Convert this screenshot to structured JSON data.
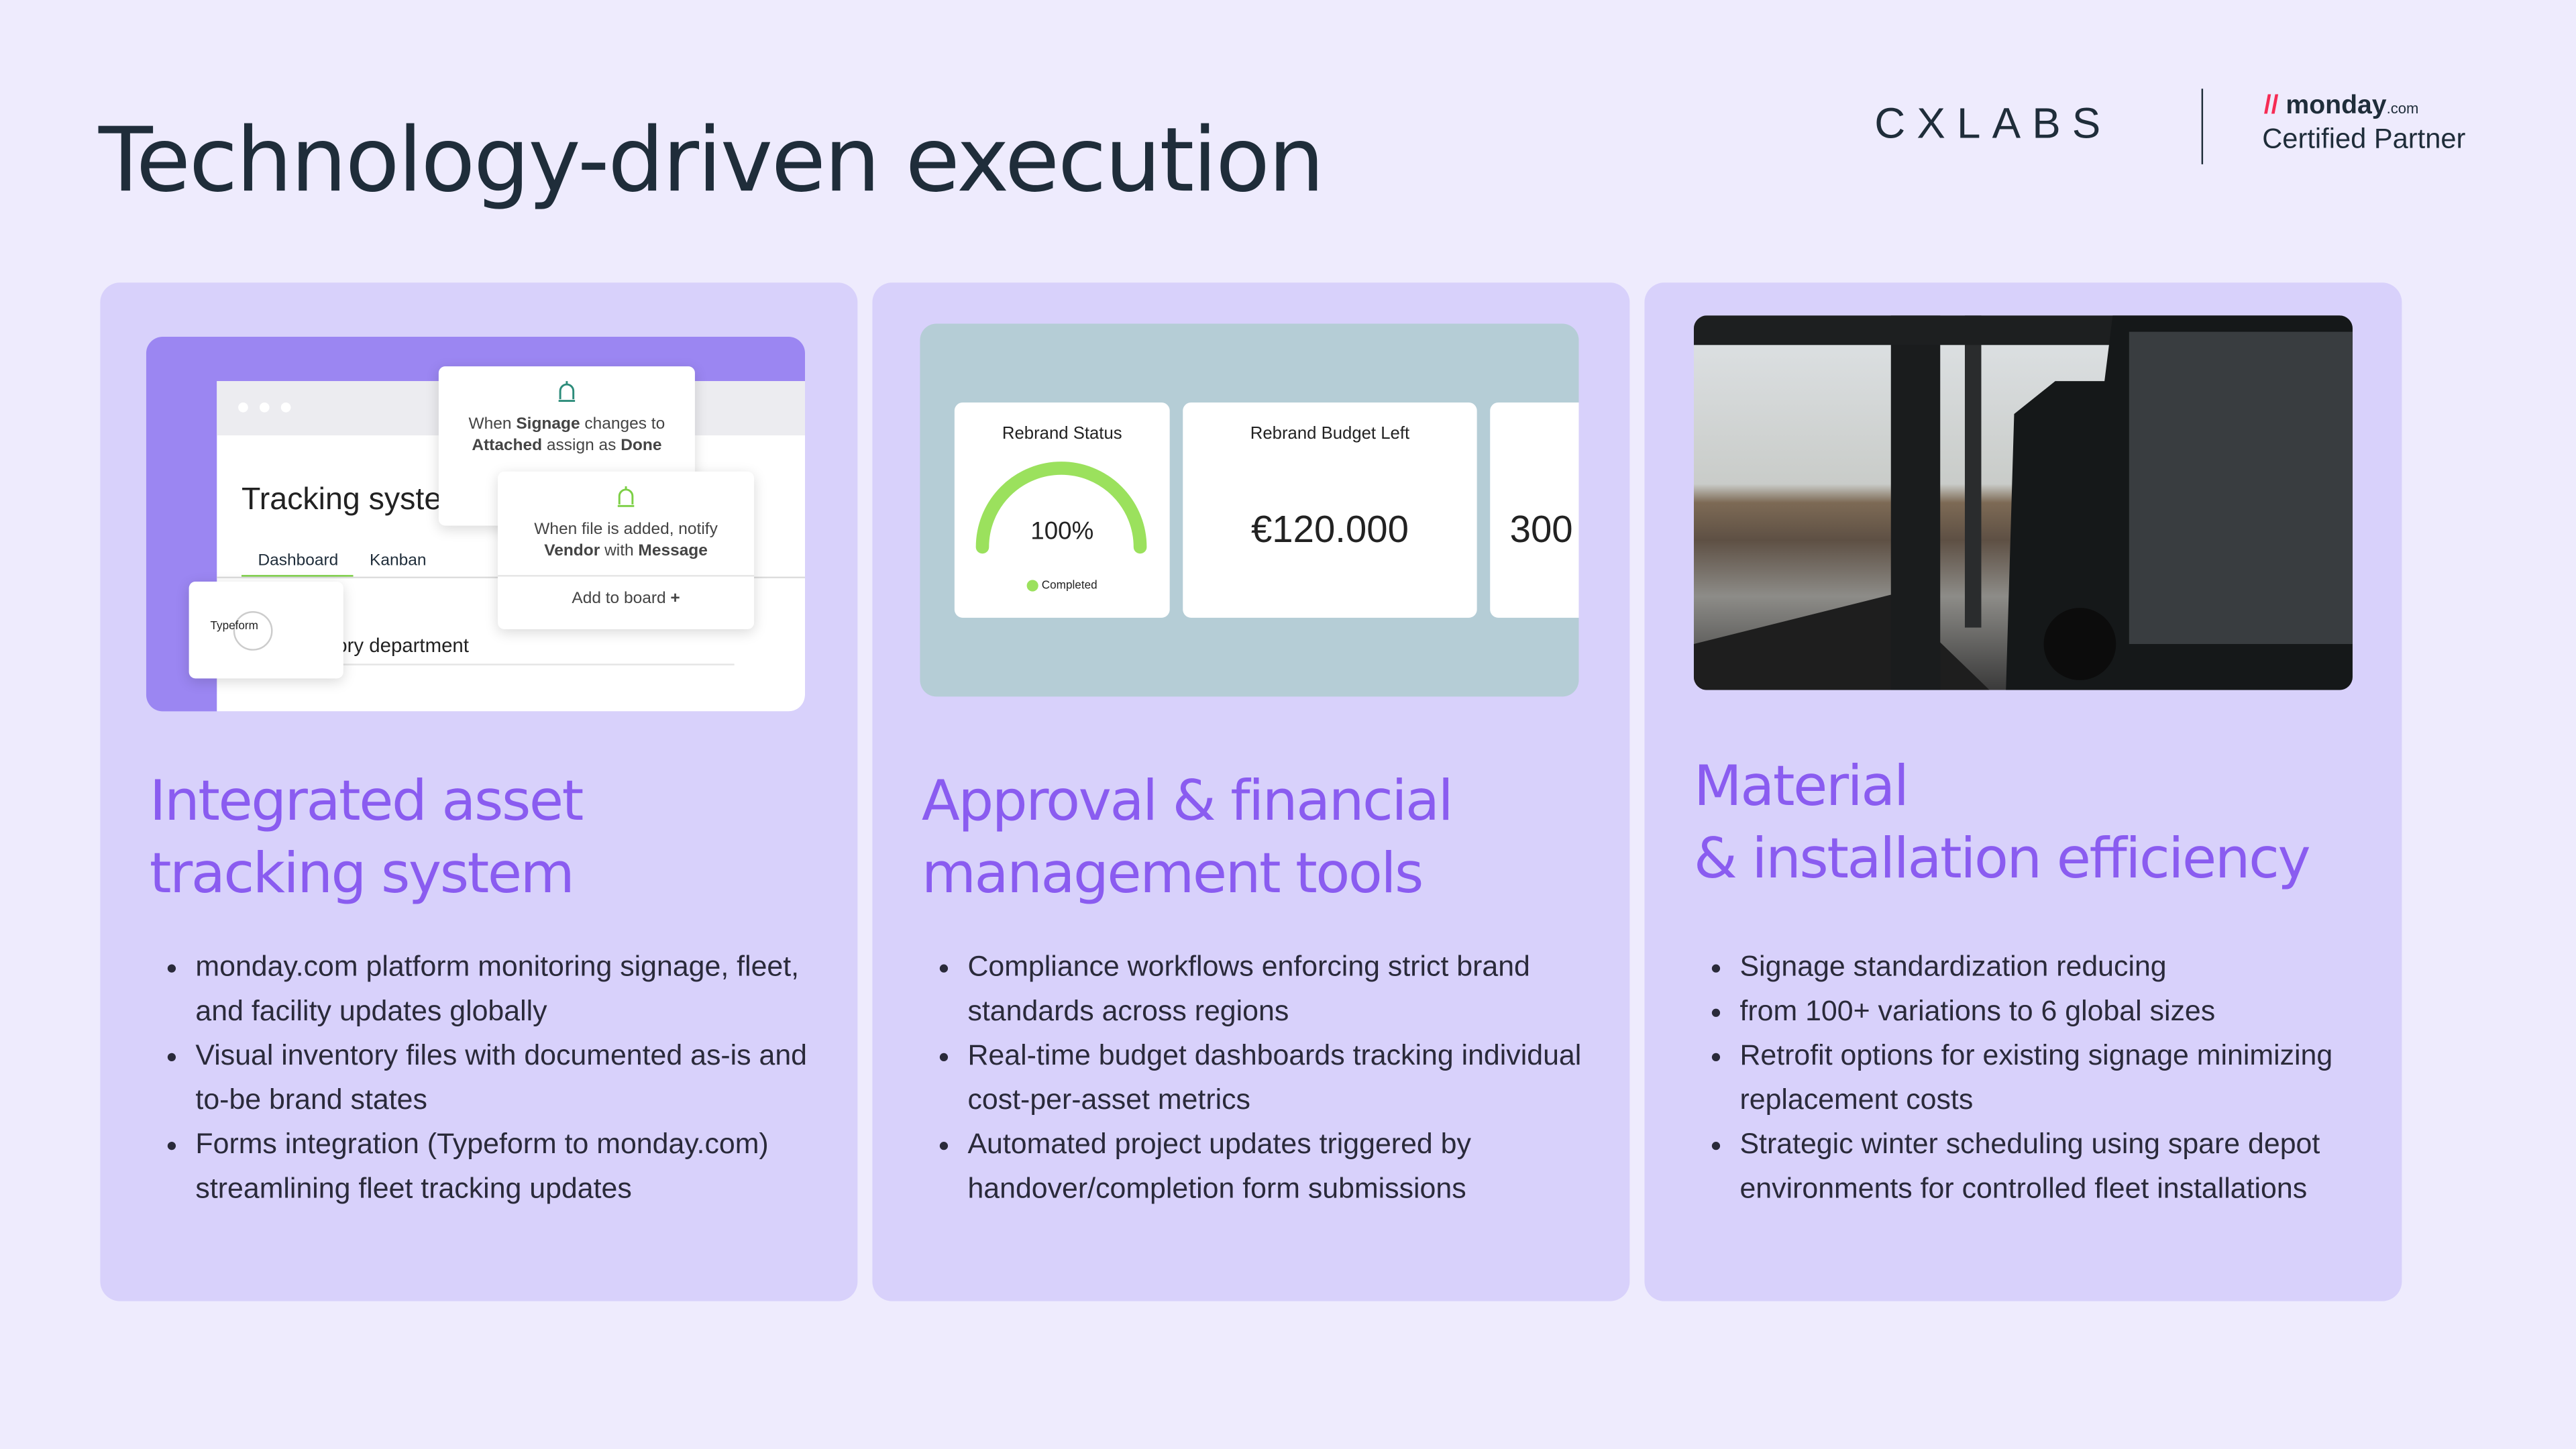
{
  "header": {
    "title": "Technology-driven execution",
    "logo": "CXLABS",
    "partner_brand": "monday",
    "partner_brand_suffix": ".com",
    "partner_label": "Certified Partner"
  },
  "cards": [
    {
      "mockup": {
        "popup1": [
          "When ",
          "Signage",
          " changes to",
          "Attached",
          " assign as ",
          "Done"
        ],
        "window_title": "Tracking system",
        "tabs": [
          "Dashboard",
          "Kanban"
        ],
        "popup2": [
          "When file is added, notify",
          "Vendor",
          " with ",
          "Message"
        ],
        "popup2_action": "Add to board",
        "popup2_action_icon": "+",
        "integration": "Typeform",
        "row": "Inventory department"
      },
      "title": [
        "Integrated asset",
        "tracking system"
      ],
      "bullets": [
        "monday.com platform monitoring signage, fleet, and facility updates globally",
        "Visual inventory files with documented as-is and to-be brand states",
        "Forms integration (Typeform to monday.com) streamlining fleet tracking updates"
      ]
    },
    {
      "mockup": {
        "status_title": "Rebrand Status",
        "status_value": "100%",
        "status_label": "Completed",
        "budget_title": "Rebrand Budget Left",
        "budget_value": "€120.000",
        "third_value": "300"
      },
      "title": [
        "Approval & financial",
        "management tools"
      ],
      "bullets": [
        "Compliance workflows enforcing strict brand standards across regions",
        "Real-time budget dashboards tracking individual cost-per-asset metrics",
        "Automated project updates triggered by handover/completion form submissions"
      ]
    },
    {
      "title": [
        "Material",
        "& installation efficiency"
      ],
      "bullets": [
        "Signage standardization reducing",
        "from 100+ variations to 6 global sizes",
        "Retrofit options for existing signage minimizing replacement costs",
        "Strategic winter scheduling using spare depot environments for controlled fleet installations"
      ]
    }
  ]
}
